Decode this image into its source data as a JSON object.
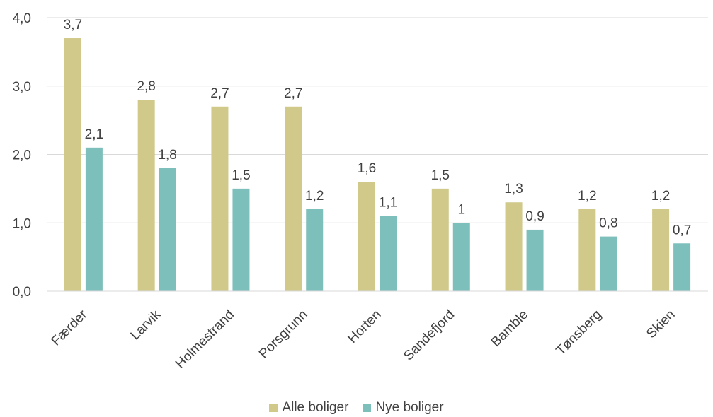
{
  "chart_data": {
    "type": "bar",
    "categories": [
      "Færder",
      "Larvik",
      "Holmestrand",
      "Porsgrunn",
      "Horten",
      "Sandefjord",
      "Bamble",
      "Tønsberg",
      "Skien"
    ],
    "series": [
      {
        "name": "Alle boliger",
        "color": "#D0C98A",
        "values": [
          3.7,
          2.8,
          2.7,
          2.7,
          1.6,
          1.5,
          1.3,
          1.2,
          1.2
        ],
        "labels": [
          "3,7",
          "2,8",
          "2,7",
          "2,7",
          "1,6",
          "1,5",
          "1,3",
          "1,2",
          "1,2"
        ]
      },
      {
        "name": "Nye boliger",
        "color": "#7DBFBA",
        "values": [
          2.1,
          1.8,
          1.5,
          1.2,
          1.1,
          1.0,
          0.9,
          0.8,
          0.7
        ],
        "labels": [
          "2,1",
          "1,8",
          "1,5",
          "1,2",
          "1,1",
          "1",
          "0,9",
          "0,8",
          "0,7"
        ]
      }
    ],
    "yticks": [
      "0,0",
      "1,0",
      "2,0",
      "3,0",
      "4,0"
    ],
    "ylim": [
      0,
      4
    ],
    "grid": true,
    "legend_position": "bottom"
  }
}
